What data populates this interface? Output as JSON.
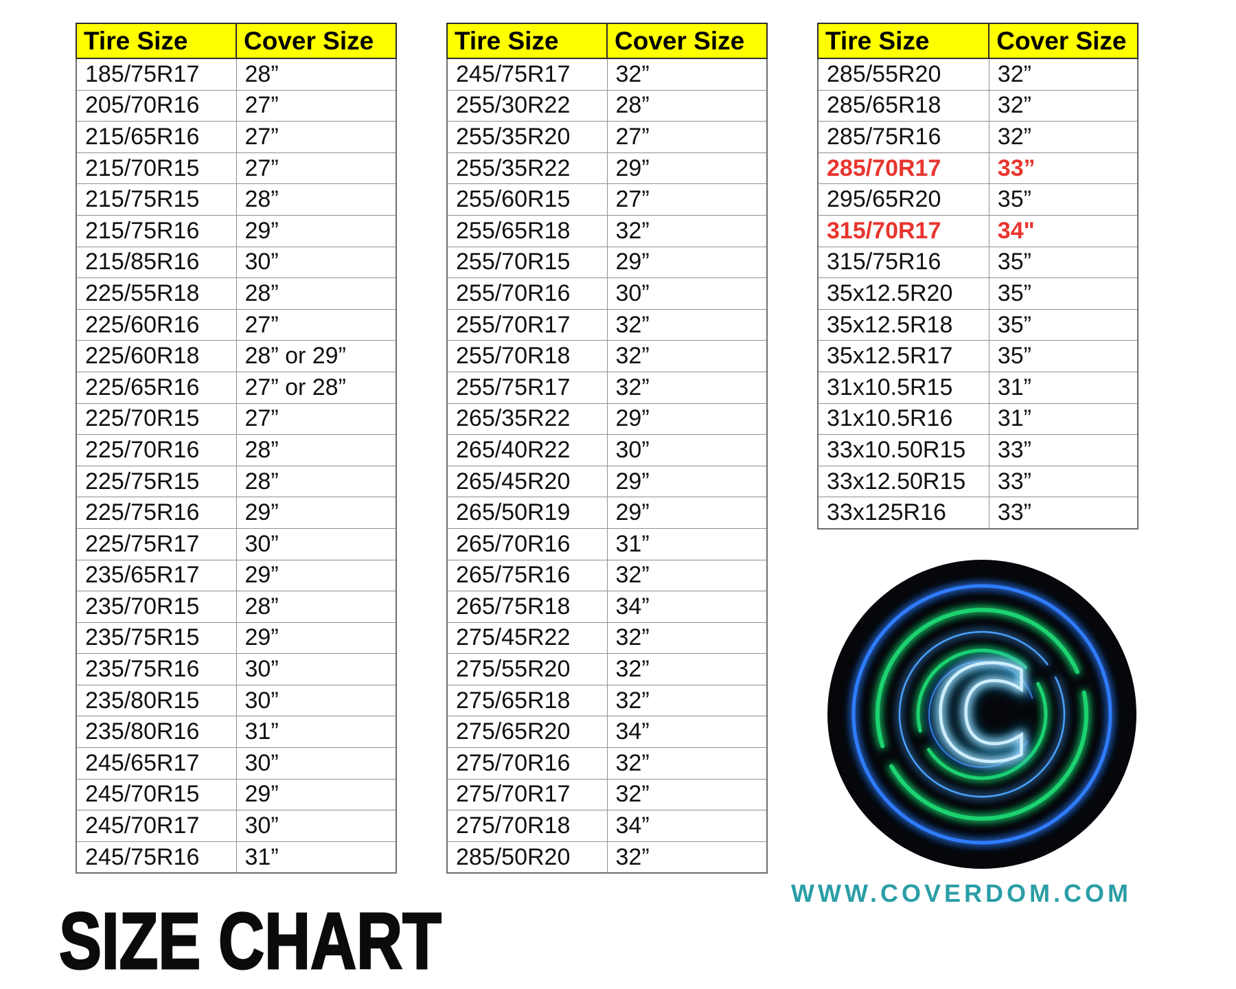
{
  "page": {
    "title": "SIZE CHART",
    "website": "WWW.COVERDOM.COM"
  },
  "colors": {
    "header_bg": "#FFFF00",
    "highlight_red": "#E8352E",
    "website_teal": "#2B9EA6",
    "grid_gray": "#8f8f8f"
  },
  "tables": [
    {
      "headers": [
        "Tire Size",
        "Cover Size"
      ],
      "rows": [
        {
          "tire": "185/75R17",
          "cover": "28”"
        },
        {
          "tire": "205/70R16",
          "cover": "27”"
        },
        {
          "tire": "215/65R16",
          "cover": "27”"
        },
        {
          "tire": "215/70R15",
          "cover": "27”"
        },
        {
          "tire": "215/75R15",
          "cover": "28”"
        },
        {
          "tire": "215/75R16",
          "cover": "29”"
        },
        {
          "tire": "215/85R16",
          "cover": "30”"
        },
        {
          "tire": "225/55R18",
          "cover": "28”"
        },
        {
          "tire": "225/60R16",
          "cover": "27”"
        },
        {
          "tire": "225/60R18",
          "cover": "28” or 29”"
        },
        {
          "tire": "225/65R16",
          "cover": "27” or 28”"
        },
        {
          "tire": "225/70R15",
          "cover": "27”"
        },
        {
          "tire": "225/70R16",
          "cover": "28”"
        },
        {
          "tire": "225/75R15",
          "cover": "28”"
        },
        {
          "tire": "225/75R16",
          "cover": "29”"
        },
        {
          "tire": "225/75R17",
          "cover": "30”"
        },
        {
          "tire": "235/65R17",
          "cover": "29”"
        },
        {
          "tire": "235/70R15",
          "cover": "28”"
        },
        {
          "tire": "235/75R15",
          "cover": "29”"
        },
        {
          "tire": "235/75R16",
          "cover": "30”"
        },
        {
          "tire": "235/80R15",
          "cover": "30”"
        },
        {
          "tire": "235/80R16",
          "cover": "31”"
        },
        {
          "tire": "245/65R17",
          "cover": "30”"
        },
        {
          "tire": "245/70R15",
          "cover": "29”"
        },
        {
          "tire": "245/70R17",
          "cover": "30”"
        },
        {
          "tire": "245/75R16",
          "cover": "31”"
        }
      ]
    },
    {
      "headers": [
        "Tire Size",
        "Cover Size"
      ],
      "rows": [
        {
          "tire": "245/75R17",
          "cover": "32”"
        },
        {
          "tire": "255/30R22",
          "cover": "28”"
        },
        {
          "tire": "255/35R20",
          "cover": "27”"
        },
        {
          "tire": "255/35R22",
          "cover": "29”"
        },
        {
          "tire": "255/60R15",
          "cover": "27”"
        },
        {
          "tire": "255/65R18",
          "cover": "32”"
        },
        {
          "tire": "255/70R15",
          "cover": "29”"
        },
        {
          "tire": "255/70R16",
          "cover": "30”"
        },
        {
          "tire": "255/70R17",
          "cover": "32”"
        },
        {
          "tire": "255/70R18",
          "cover": "32”"
        },
        {
          "tire": "255/75R17",
          "cover": "32”"
        },
        {
          "tire": "265/35R22",
          "cover": "29”"
        },
        {
          "tire": "265/40R22",
          "cover": "30”"
        },
        {
          "tire": "265/45R20",
          "cover": "29”"
        },
        {
          "tire": "265/50R19",
          "cover": "29”"
        },
        {
          "tire": "265/70R16",
          "cover": "31”"
        },
        {
          "tire": "265/75R16",
          "cover": "32”"
        },
        {
          "tire": "265/75R18",
          "cover": "34”"
        },
        {
          "tire": "275/45R22",
          "cover": "32”"
        },
        {
          "tire": "275/55R20",
          "cover": "32”"
        },
        {
          "tire": "275/65R18",
          "cover": "32”"
        },
        {
          "tire": "275/65R20",
          "cover": "34”"
        },
        {
          "tire": "275/70R16",
          "cover": "32”"
        },
        {
          "tire": "275/70R17",
          "cover": "32”"
        },
        {
          "tire": "275/70R18",
          "cover": "34”"
        },
        {
          "tire": "285/50R20",
          "cover": "32”"
        }
      ]
    },
    {
      "headers": [
        "Tire Size",
        "Cover Size"
      ],
      "rows": [
        {
          "tire": "285/55R20",
          "cover": "32”"
        },
        {
          "tire": "285/65R18",
          "cover": "32”"
        },
        {
          "tire": "285/75R16",
          "cover": "32”"
        },
        {
          "tire": "285/70R17",
          "cover": "33”",
          "highlight": true
        },
        {
          "tire": "295/65R20",
          "cover": "35”"
        },
        {
          "tire": "315/70R17",
          "cover": "34\"",
          "highlight": true
        },
        {
          "tire": "315/75R16",
          "cover": "35”"
        },
        {
          "tire": "35x12.5R20",
          "cover": "35”"
        },
        {
          "tire": "35x12.5R18",
          "cover": "35”"
        },
        {
          "tire": "35x12.5R17",
          "cover": "35”"
        },
        {
          "tire": "31x10.5R15",
          "cover": "31”"
        },
        {
          "tire": "31x10.5R16",
          "cover": "31”"
        },
        {
          "tire": "33x10.50R15",
          "cover": "33”"
        },
        {
          "tire": "33x12.50R15",
          "cover": "33”"
        },
        {
          "tire": "33x125R16",
          "cover": "33”"
        }
      ]
    }
  ],
  "logo": {
    "letter": "C",
    "disc_color": "#05070b",
    "blue_ring": "#2f7dff",
    "green_ring": "#1ed36f",
    "thin_blue": "#4aa3ff",
    "letter_stroke": "#cdeeff",
    "letter_glow": "#1d9fd8"
  }
}
